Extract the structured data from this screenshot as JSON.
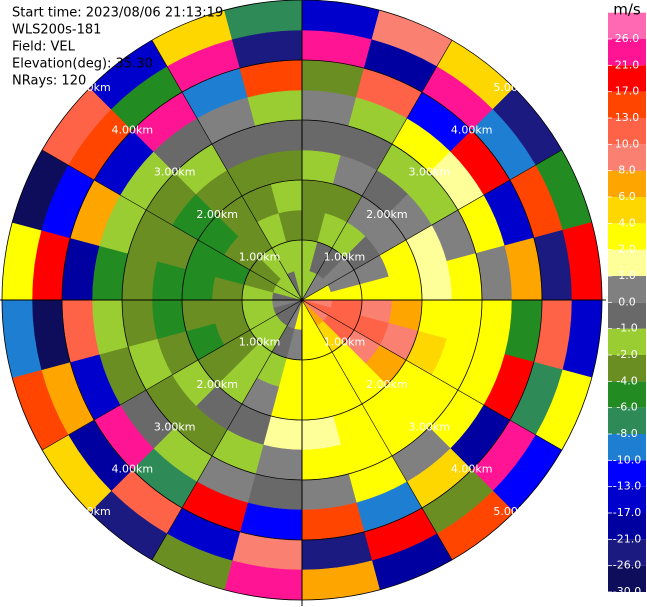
{
  "chart_data": {
    "type": "ppi",
    "annotations": [
      "Start time: 2023/08/06 21:13:19",
      "WLS200s-181",
      "Field: VEL",
      "Elevation(deg): 35.30",
      "NRays: 120"
    ],
    "rlim": [
      0,
      5
    ],
    "rticks": [
      {
        "value": 1,
        "label": "1.00km"
      },
      {
        "value": 2,
        "label": "2.00km"
      },
      {
        "value": 3,
        "label": "3.00km"
      },
      {
        "value": 4,
        "label": "4.00km"
      },
      {
        "value": 5,
        "label": "5.00km"
      }
    ],
    "azimuths": [
      0,
      15,
      30,
      45,
      60,
      75,
      90,
      105,
      120,
      135,
      150,
      165,
      180,
      195,
      210,
      225,
      240,
      255,
      270,
      285,
      300,
      315,
      330,
      345
    ],
    "ranges": [
      0,
      0.5,
      1,
      1.5,
      2,
      2.5,
      3,
      3.5,
      4,
      4.5
    ],
    "values": [
      [
        -2,
        -2,
        -3,
        -3,
        -2,
        -1,
        0.5,
        -3,
        25,
        -15
      ],
      [
        -2,
        -1,
        -2,
        -3,
        0.5,
        -1,
        -2,
        12,
        -20,
        9
      ],
      [
        0.5,
        -1,
        -2,
        0.5,
        -1,
        -2,
        3,
        -12,
        22,
        5
      ],
      [
        0.5,
        0.5,
        -1,
        0.5,
        0.5,
        -2,
        1.5,
        18,
        -9,
        -25
      ],
      [
        3,
        0.5,
        0.5,
        3,
        1.5,
        0.5,
        3,
        -15,
        15,
        -5
      ],
      [
        3,
        3,
        3,
        3,
        1.5,
        3,
        0.5,
        7,
        -22,
        19
      ],
      [
        9,
        11,
        9,
        7,
        3,
        3,
        3,
        -5,
        11,
        -14
      ],
      [
        11,
        12,
        11,
        9,
        5,
        3,
        3,
        20,
        -7,
        3
      ],
      [
        9,
        11,
        9,
        7,
        3,
        3,
        3,
        -18,
        24,
        -11
      ],
      [
        7,
        5,
        3,
        3,
        3,
        3,
        0.5,
        5,
        -3,
        15
      ],
      [
        3,
        3,
        3,
        3,
        3,
        3,
        3,
        -9,
        18,
        -19
      ],
      [
        3,
        3,
        3,
        3,
        1.5,
        3,
        0.5,
        14,
        -25,
        7
      ],
      [
        3,
        0.5,
        3,
        3,
        1.5,
        0.5,
        -1,
        -11,
        9,
        23
      ],
      [
        0.5,
        -1,
        -2,
        0.5,
        -1,
        -2,
        0.5,
        17,
        -16,
        -3
      ],
      [
        -1,
        -2,
        -1.5,
        -2,
        -1,
        -3,
        -2,
        -7,
        12,
        -23
      ],
      [
        -1,
        -2,
        -3,
        -3,
        -2,
        -3,
        -1,
        22,
        -19,
        5
      ],
      [
        -1,
        -2,
        -3,
        -5,
        -3,
        -2,
        -3,
        -14,
        7,
        16
      ],
      [
        0.5,
        -2,
        -3,
        -3,
        -5,
        -3,
        -2,
        10,
        -27,
        -9
      ],
      [
        -1,
        -2,
        -3,
        -5,
        -5,
        -3,
        -5,
        -20,
        19,
        3
      ],
      [
        -2,
        -3,
        -5,
        -5,
        -3,
        -3,
        -2,
        6,
        -12,
        -28
      ],
      [
        -2,
        -3,
        -3,
        -5,
        -5,
        -3,
        -2,
        -17,
        14,
        11
      ],
      [
        -2,
        -2,
        -3,
        -3,
        -3,
        -2,
        -1,
        24,
        -5,
        -16
      ],
      [
        -1,
        -2,
        -2,
        -3,
        -3,
        -1,
        0.5,
        -10,
        21,
        4
      ],
      [
        -2,
        -2,
        -3,
        -2,
        -3,
        -1,
        -2,
        16,
        -24,
        -7
      ]
    ],
    "colorbar": {
      "title": "m/s",
      "clim": [
        -30,
        30
      ],
      "ticks": [
        {
          "value": 26,
          "label": "26.0"
        },
        {
          "value": 21,
          "label": "21.0"
        },
        {
          "value": 17,
          "label": "17.0"
        },
        {
          "value": 13,
          "label": "13.0"
        },
        {
          "value": 10,
          "label": "10.0"
        },
        {
          "value": 8,
          "label": "8.0"
        },
        {
          "value": 6,
          "label": "6.0"
        },
        {
          "value": 4,
          "label": "4.0"
        },
        {
          "value": 2,
          "label": "2.0"
        },
        {
          "value": 1,
          "label": "1.0"
        },
        {
          "value": 0,
          "label": "0.0"
        },
        {
          "value": -1,
          "label": "-1.0"
        },
        {
          "value": -2,
          "label": "-2.0"
        },
        {
          "value": -4,
          "label": "-4.0"
        },
        {
          "value": -6,
          "label": "-6.0"
        },
        {
          "value": -8,
          "label": "-8.0"
        },
        {
          "value": -10,
          "label": "-10.0"
        },
        {
          "value": -13,
          "label": "-13.0"
        },
        {
          "value": -17,
          "label": "-17.0"
        },
        {
          "value": -21,
          "label": "-21.0"
        },
        {
          "value": -26,
          "label": "-26.0"
        },
        {
          "value": -30,
          "label": "-30.0"
        }
      ],
      "colors": [
        "#0d0d5c",
        "#1a1a80",
        "#0000a0",
        "#0000cd",
        "#0000ff",
        "#1e7fd2",
        "#2e8b57",
        "#228b22",
        "#6b8e23",
        "#9acd32",
        "#696969",
        "#808080",
        "#ffff99",
        "#ffff00",
        "#ffd700",
        "#ffa500",
        "#fa8072",
        "#ff6347",
        "#ff4500",
        "#ff0000",
        "#ff1493",
        "#ff69b4"
      ]
    }
  }
}
